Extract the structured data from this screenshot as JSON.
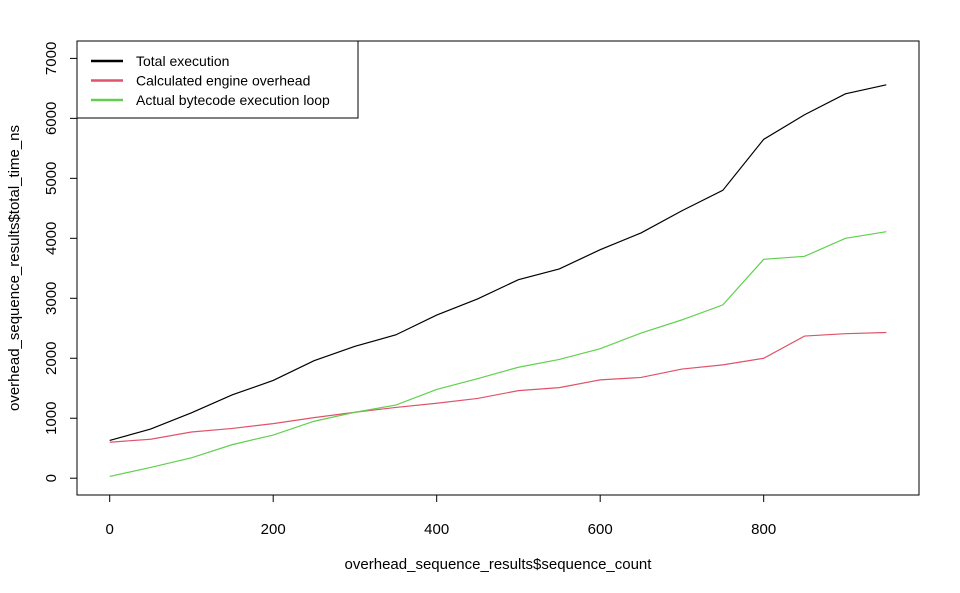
{
  "chart_data": {
    "type": "line",
    "title": "",
    "xlabel": "overhead_sequence_results$sequence_count",
    "ylabel": "overhead_sequence_results$total_time_ns",
    "xlim": [
      -40,
      990
    ],
    "ylim": [
      -280,
      7290
    ],
    "x_ticks": [
      0,
      200,
      400,
      600,
      800
    ],
    "y_ticks": [
      0,
      1000,
      2000,
      3000,
      4000,
      5000,
      6000,
      7000
    ],
    "legend_position": "top-left",
    "grid": false,
    "x": [
      0,
      50,
      100,
      150,
      200,
      250,
      300,
      350,
      400,
      450,
      500,
      550,
      600,
      650,
      700,
      750,
      800,
      850,
      900,
      950
    ],
    "series": [
      {
        "name": "Total execution",
        "color": "#000000",
        "values": [
          630,
          820,
          1090,
          1390,
          1630,
          1960,
          2200,
          2390,
          2720,
          2990,
          3310,
          3490,
          3810,
          4090,
          4460,
          4800,
          5650,
          6060,
          6410,
          6560
        ]
      },
      {
        "name": "Calculated engine overhead",
        "color": "#DF536B",
        "values": [
          600,
          650,
          770,
          830,
          910,
          1010,
          1100,
          1180,
          1250,
          1330,
          1460,
          1510,
          1640,
          1680,
          1820,
          1890,
          2000,
          2370,
          2410,
          2430
        ]
      },
      {
        "name": "Actual bytecode execution loop",
        "color": "#61D04F",
        "values": [
          30,
          180,
          340,
          560,
          720,
          950,
          1100,
          1220,
          1480,
          1660,
          1850,
          1980,
          2160,
          2420,
          2640,
          2890,
          3650,
          3700,
          4000,
          4110
        ]
      }
    ]
  }
}
